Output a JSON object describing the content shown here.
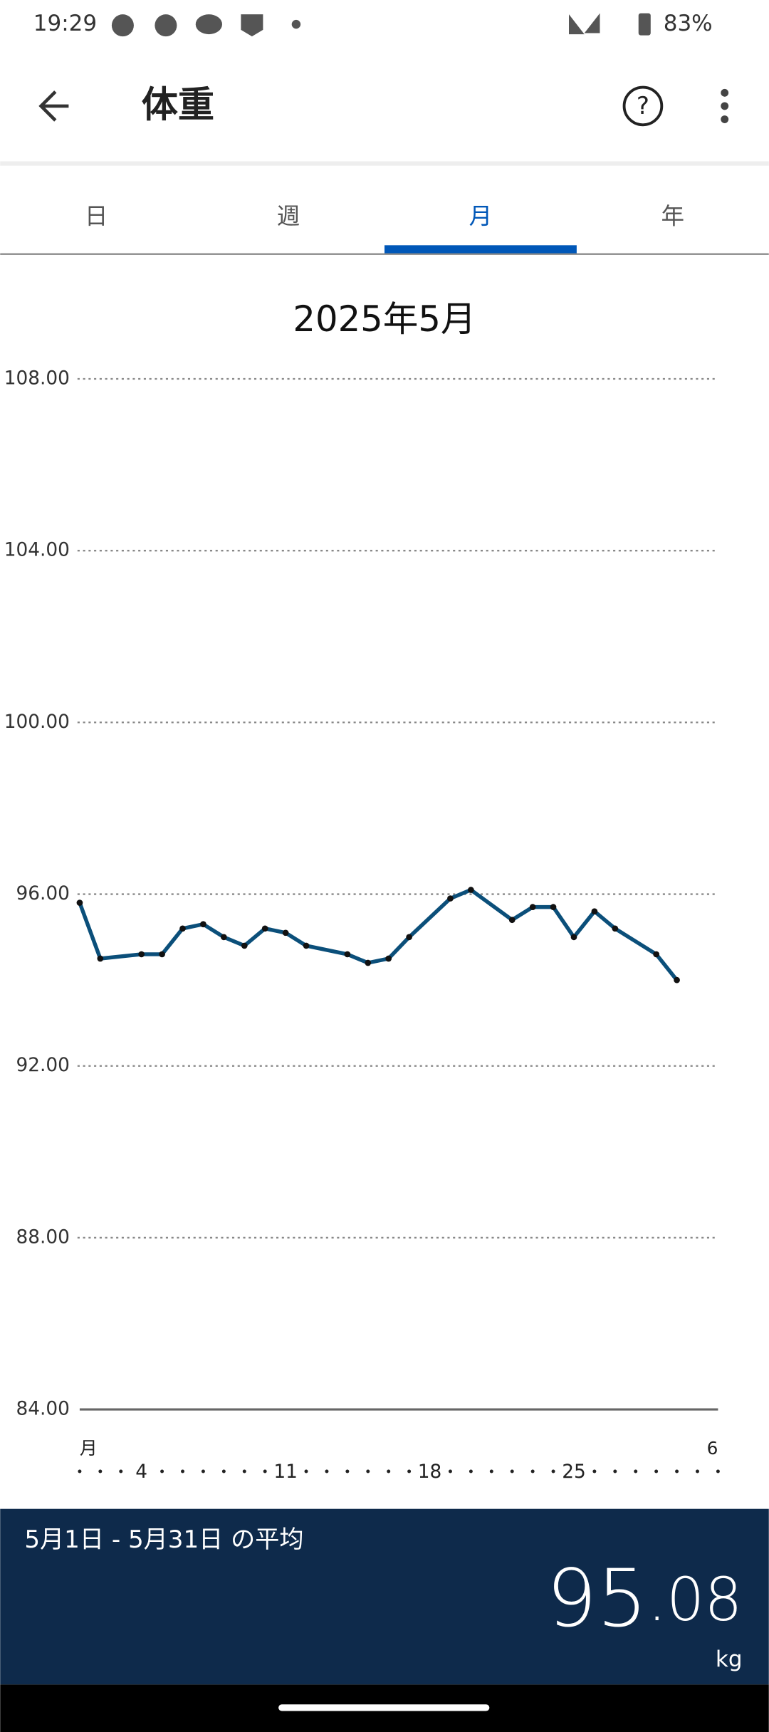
{
  "status_bar": {
    "time": "19:29",
    "battery": "83%"
  },
  "header": {
    "title": "体重"
  },
  "tabs": {
    "items": [
      "日",
      "週",
      "月",
      "年"
    ],
    "selected": 2
  },
  "chart_data": {
    "type": "line",
    "title": "2025年5月",
    "x": [
      1,
      2,
      4,
      5,
      6,
      7,
      8,
      9,
      10,
      11,
      12,
      14,
      15,
      16,
      17,
      19,
      20,
      22,
      23,
      24,
      25,
      26,
      27,
      29,
      30
    ],
    "series": [
      {
        "color": "#0b4f7a",
        "values": [
          95.8,
          94.5,
          94.6,
          94.6,
          95.2,
          95.3,
          95.0,
          94.8,
          95.2,
          95.1,
          94.8,
          94.6,
          94.4,
          94.5,
          95.0,
          95.9,
          96.1,
          95.4,
          95.7,
          95.7,
          95.0,
          95.6,
          95.2,
          94.6,
          94.0
        ]
      }
    ],
    "xlim": [
      1,
      32
    ],
    "xticks": [
      4,
      11,
      18,
      25
    ],
    "month_labels": [
      {
        "value": 1,
        "label": "月"
      },
      {
        "value": 32,
        "label": "6"
      }
    ],
    "ylim": [
      84,
      108
    ],
    "yticks": [
      {
        "value": 84,
        "label": "84.00"
      },
      {
        "value": 88,
        "label": "88.00"
      },
      {
        "value": 92,
        "label": "92.00"
      },
      {
        "value": 96,
        "label": "96.00"
      },
      {
        "value": 100,
        "label": "100.00"
      },
      {
        "value": 104,
        "label": "104.00"
      },
      {
        "value": 108,
        "label": "108.00"
      }
    ],
    "grid": true
  },
  "summary": {
    "label": "5月1日 - 5月31日 の平均",
    "integer": "95",
    "separator": ".",
    "decimal": "08",
    "unit": "kg"
  }
}
